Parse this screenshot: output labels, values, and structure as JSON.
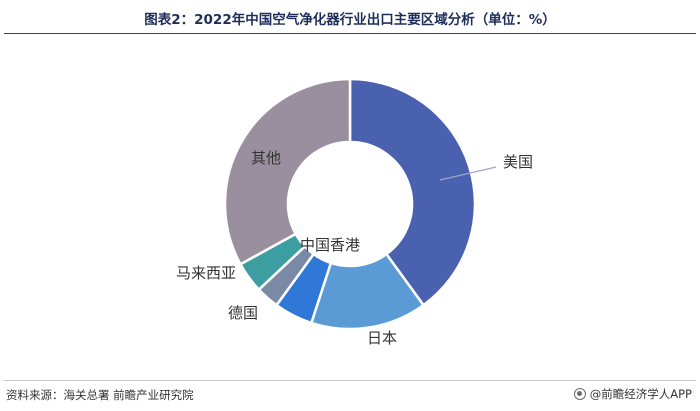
{
  "title": "图表2：2022年中国空气净化器行业出口主要区域分析（单位：%）",
  "footer": {
    "source": "资料来源：海关总署 前瞻产业研究院",
    "brand": "@前瞻经济学人APP"
  },
  "colors": {
    "title": "#1f2d5a",
    "rule": "#2b3f8f"
  },
  "chart_data": {
    "type": "pie",
    "donut": true,
    "title": "图表2：2022年中国空气净化器行业出口主要区域分析（单位：%）",
    "unit": "%",
    "slices": [
      {
        "label": "美国",
        "value": 40.0,
        "color": "#4a61b0"
      },
      {
        "label": "日本",
        "value": 15.0,
        "color": "#5b9bd5"
      },
      {
        "label": "德国",
        "value": 5.0,
        "color": "#2f78d8"
      },
      {
        "label": "马来西亚",
        "value": 3.0,
        "color": "#7a8aa6"
      },
      {
        "label": "中国香港",
        "value": 4.0,
        "color": "#3d9ea1"
      },
      {
        "label": "其他",
        "value": 33.0,
        "color": "#9a8f9e"
      }
    ]
  }
}
